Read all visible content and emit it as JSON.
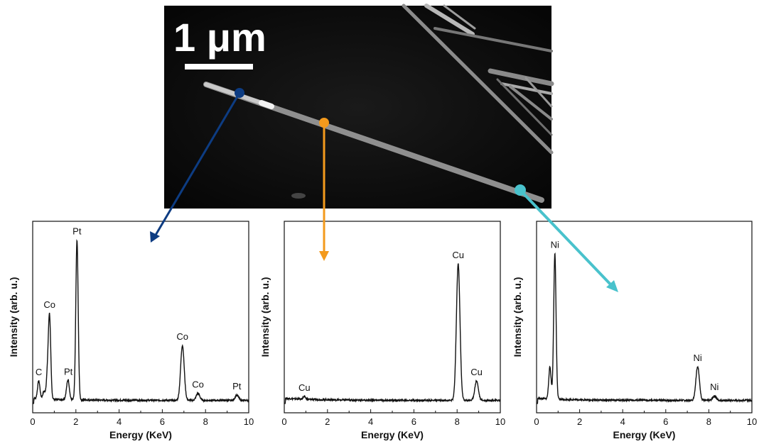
{
  "micrograph": {
    "scale_bar_label": "1 μm"
  },
  "colors": {
    "left": "#0d3c82",
    "middle": "#f39a1d",
    "right": "#49c2cc",
    "trace": "#111111"
  },
  "chart_data": [
    {
      "type": "line",
      "name": "left",
      "xlabel": "Energy (KeV)",
      "ylabel": "Intensity (arb. u.)",
      "xlim": [
        0,
        10
      ],
      "ylim": [
        0,
        100
      ],
      "xticks": [
        0,
        2,
        4,
        6,
        8,
        10
      ],
      "peaks": [
        {
          "x": 0.28,
          "height": 10,
          "label": "C"
        },
        {
          "x": 0.52,
          "height": 4,
          "label": ""
        },
        {
          "x": 0.68,
          "height": 12,
          "label": ""
        },
        {
          "x": 0.78,
          "height": 46,
          "label": "Co"
        },
        {
          "x": 1.58,
          "height": 4,
          "label": ""
        },
        {
          "x": 1.65,
          "height": 9,
          "label": "Pt"
        },
        {
          "x": 2.05,
          "height": 90,
          "label": "Pt"
        },
        {
          "x": 6.93,
          "height": 31,
          "label": "Co"
        },
        {
          "x": 7.65,
          "height": 4,
          "label": "Co"
        },
        {
          "x": 9.45,
          "height": 3,
          "label": "Pt"
        }
      ]
    },
    {
      "type": "line",
      "name": "middle",
      "xlabel": "Energy (KeV)",
      "ylabel": "Intensity (arb. u.)",
      "xlim": [
        0,
        10
      ],
      "ylim": [
        0,
        100
      ],
      "xticks": [
        0,
        2,
        4,
        6,
        8,
        10
      ],
      "peaks": [
        {
          "x": 0.93,
          "height": 1.5,
          "label": "Cu"
        },
        {
          "x": 8.05,
          "height": 77,
          "label": "Cu"
        },
        {
          "x": 8.9,
          "height": 11,
          "label": "Cu"
        }
      ]
    },
    {
      "type": "line",
      "name": "right",
      "xlabel": "Energy (KeV)",
      "ylabel": "Intensity (arb. u.)",
      "xlim": [
        0,
        10
      ],
      "ylim": [
        0,
        100
      ],
      "xticks": [
        0,
        2,
        4,
        6,
        8,
        10
      ],
      "peaks": [
        {
          "x": 0.62,
          "height": 18,
          "label": ""
        },
        {
          "x": 0.85,
          "height": 82,
          "label": "Ni"
        },
        {
          "x": 7.48,
          "height": 19,
          "label": "Ni"
        },
        {
          "x": 8.26,
          "height": 2.5,
          "label": "Ni"
        }
      ]
    }
  ]
}
